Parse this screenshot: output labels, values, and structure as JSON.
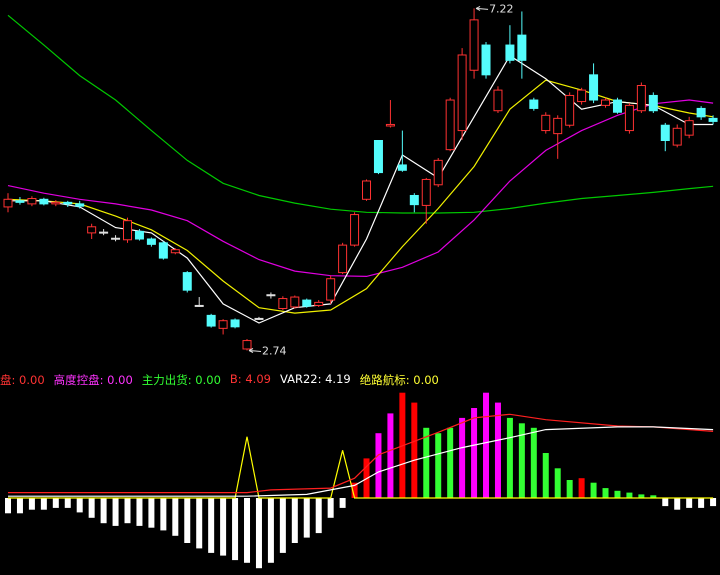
{
  "chart_data": [
    {
      "type": "candlestick",
      "xlim": [
        -0.67,
        59.58
      ],
      "ylim": [
        2.55,
        7.33
      ],
      "up_color": "#ff3232",
      "down_color": "#54fcfc",
      "flat_color": "#e0e0e0",
      "open": [
        4.62,
        4.7,
        4.66,
        4.72,
        4.66,
        4.68,
        4.66,
        4.28,
        4.29,
        4.21,
        4.19,
        4.3,
        4.2,
        4.15,
        4.02,
        3.76,
        3.33,
        3.2,
        3.03,
        3.14,
        2.76,
        3.16,
        3.47,
        3.29,
        3.31,
        3.4,
        3.33,
        3.4,
        3.76,
        4.12,
        4.72,
        5.49,
        5.68,
        5.17,
        4.77,
        4.64,
        4.91,
        5.37,
        5.62,
        6.41,
        6.74,
        5.88,
        6.74,
        6.87,
        6.02,
        5.62,
        5.58,
        5.69,
        6.0,
        6.35,
        5.95,
        6.02,
        5.62,
        5.88,
        6.08,
        5.69,
        5.43,
        5.56,
        5.91,
        5.78
      ],
      "close": [
        4.72,
        4.68,
        4.73,
        4.66,
        4.68,
        4.66,
        4.63,
        4.36,
        4.29,
        4.21,
        4.44,
        4.2,
        4.13,
        3.95,
        4.06,
        3.53,
        3.33,
        3.06,
        3.13,
        3.05,
        2.87,
        3.16,
        3.47,
        3.42,
        3.44,
        3.32,
        3.37,
        3.68,
        4.12,
        4.52,
        4.96,
        5.07,
        5.7,
        5.1,
        4.65,
        4.98,
        5.23,
        6.02,
        6.61,
        7.07,
        6.35,
        6.15,
        6.54,
        6.54,
        5.91,
        5.82,
        5.78,
        6.08,
        6.15,
        6.02,
        6.02,
        5.86,
        5.95,
        6.21,
        5.88,
        5.49,
        5.65,
        5.75,
        5.8,
        5.74
      ],
      "high": [
        4.8,
        4.75,
        4.76,
        4.74,
        4.71,
        4.7,
        4.7,
        4.4,
        4.33,
        4.25,
        4.48,
        4.33,
        4.22,
        4.17,
        4.08,
        3.78,
        3.44,
        3.22,
        3.15,
        3.16,
        2.89,
        3.18,
        3.5,
        3.45,
        3.46,
        3.42,
        3.4,
        3.72,
        4.15,
        4.55,
        4.98,
        5.49,
        6.02,
        5.62,
        4.8,
        5.0,
        5.26,
        6.05,
        6.7,
        7.22,
        6.78,
        6.2,
        7.0,
        7.18,
        6.05,
        5.86,
        5.82,
        6.12,
        6.18,
        6.5,
        6.05,
        6.05,
        5.98,
        6.25,
        6.12,
        5.72,
        5.7,
        5.8,
        5.94,
        5.82
      ],
      "low": [
        4.55,
        4.65,
        4.63,
        4.64,
        4.63,
        4.62,
        4.6,
        4.2,
        4.25,
        4.17,
        4.15,
        4.18,
        4.1,
        3.93,
        4.0,
        3.5,
        3.31,
        3.04,
        2.95,
        3.03,
        2.74,
        3.14,
        3.42,
        3.27,
        3.29,
        3.3,
        3.31,
        3.35,
        3.74,
        4.1,
        4.7,
        5.05,
        5.66,
        5.08,
        4.55,
        4.4,
        4.88,
        5.35,
        5.5,
        6.3,
        6.3,
        5.85,
        6.5,
        6.3,
        5.88,
        5.58,
        5.25,
        5.66,
        5.96,
        5.98,
        5.92,
        5.84,
        5.58,
        5.85,
        5.85,
        5.35,
        5.4,
        5.52,
        5.76,
        5.7
      ],
      "series": [
        {
          "color": "#00c800",
          "x": [
            0,
            3,
            6,
            9,
            12,
            15,
            18,
            21,
            24,
            27,
            30,
            33,
            36,
            39,
            42,
            45,
            48,
            51,
            54,
            57,
            59
          ],
          "values": [
            7.13,
            6.74,
            6.34,
            6.02,
            5.62,
            5.23,
            4.93,
            4.77,
            4.67,
            4.59,
            4.55,
            4.54,
            4.54,
            4.55,
            4.6,
            4.67,
            4.73,
            4.77,
            4.81,
            4.86,
            4.89
          ]
        },
        {
          "color": "#e000e0",
          "x": [
            0,
            3,
            6,
            9,
            12,
            15,
            18,
            21,
            24,
            27,
            30,
            33,
            36,
            39,
            42,
            45,
            48,
            51,
            54,
            57,
            59
          ],
          "values": [
            4.9,
            4.8,
            4.72,
            4.66,
            4.58,
            4.44,
            4.17,
            3.93,
            3.78,
            3.72,
            3.71,
            3.83,
            4.03,
            4.45,
            4.96,
            5.36,
            5.62,
            5.82,
            5.97,
            6.02,
            5.98
          ]
        },
        {
          "color": "#f0f000",
          "x": [
            0,
            3,
            6,
            9,
            12,
            15,
            18,
            21,
            24,
            27,
            30,
            33,
            36,
            39,
            42,
            45,
            48,
            51,
            54,
            57,
            59
          ],
          "values": [
            4.72,
            4.7,
            4.66,
            4.5,
            4.32,
            4.05,
            3.65,
            3.3,
            3.23,
            3.27,
            3.55,
            4.1,
            4.6,
            5.15,
            5.9,
            6.28,
            6.15,
            6.0,
            5.95,
            5.85,
            5.8
          ]
        },
        {
          "color": "#ffffff",
          "x": [
            0,
            3,
            6,
            9,
            12,
            15,
            18,
            21,
            24,
            27,
            30,
            33,
            36,
            39,
            42,
            45,
            48,
            51,
            54,
            57,
            59
          ],
          "values": [
            4.7,
            4.7,
            4.62,
            4.35,
            4.28,
            3.95,
            3.35,
            3.1,
            3.3,
            3.35,
            4.2,
            5.3,
            5.0,
            5.8,
            6.6,
            6.3,
            5.9,
            6.0,
            5.95,
            5.7,
            5.7
          ]
        }
      ],
      "annotations": [
        {
          "label": "7.22",
          "value": 7.22,
          "x": 39
        },
        {
          "label": "2.74",
          "value": 2.74,
          "x": 20
        }
      ]
    },
    {
      "type": "indicator",
      "xlim": [
        -0.67,
        59.58
      ],
      "ylim": [
        -8,
        12
      ],
      "legend": [
        {
          "text": "盘: 0.00",
          "color": "#ff3333"
        },
        {
          "text": "高度控盘: 0.00",
          "color": "#ff33ff"
        },
        {
          "text": "主力出货: 0.00",
          "color": "#33ff33"
        },
        {
          "text": "B: 4.09",
          "color": "#ff3333"
        },
        {
          "text": "VAR22: 4.19",
          "color": "#ffffff"
        },
        {
          "text": "绝路航标: 0.00",
          "color": "#ffff33"
        }
      ],
      "values": [
        -1.7,
        -1.7,
        -1.3,
        -1.3,
        -1.1,
        -1.1,
        -1.6,
        -2.2,
        -2.8,
        -3.1,
        -2.8,
        -3.1,
        -3.3,
        -3.6,
        -4.2,
        -5.0,
        -5.6,
        -6.1,
        -6.4,
        -6.9,
        -7.2,
        -7.8,
        -7.2,
        -6.1,
        -5.0,
        -4.4,
        -3.9,
        -2.2,
        -1.1,
        1.7,
        4.4,
        7.2,
        9.4,
        11.7,
        10.6,
        7.8,
        7.2,
        7.8,
        8.9,
        10.0,
        11.7,
        10.6,
        8.9,
        8.3,
        7.8,
        5.0,
        3.3,
        2.0,
        2.2,
        1.7,
        1.1,
        0.8,
        0.6,
        0.4,
        0.3,
        -0.9,
        -1.3,
        -1.1,
        -1.1,
        -0.9
      ],
      "colors": [
        "#ffffff",
        "#ffffff",
        "#ffffff",
        "#ffffff",
        "#ffffff",
        "#ffffff",
        "#ffffff",
        "#ffffff",
        "#ffffff",
        "#ffffff",
        "#ffffff",
        "#ffffff",
        "#ffffff",
        "#ffffff",
        "#ffffff",
        "#ffffff",
        "#ffffff",
        "#ffffff",
        "#ffffff",
        "#ffffff",
        "#ffffff",
        "#ffffff",
        "#ffffff",
        "#ffffff",
        "#ffffff",
        "#ffffff",
        "#ffffff",
        "#ffffff",
        "#ffffff",
        "#ff0000",
        "#ff0000",
        "#ff00ff",
        "#ff00ff",
        "#ff0000",
        "#ff0000",
        "#33ff33",
        "#33ff33",
        "#33ff33",
        "#ff00ff",
        "#ff00ff",
        "#ff00ff",
        "#ff00ff",
        "#33ff33",
        "#33ff33",
        "#33ff33",
        "#33ff33",
        "#33ff33",
        "#33ff33",
        "#ff0000",
        "#33ff33",
        "#33ff33",
        "#33ff33",
        "#33ff33",
        "#33ff33",
        "#33ff33",
        "#ffffff",
        "#ffffff",
        "#ffffff",
        "#ffffff",
        "#ffffff"
      ],
      "series": [
        {
          "color": "#ffff00",
          "x": [
            0,
            19,
            20,
            21,
            27,
            28,
            29,
            59
          ],
          "values": [
            0,
            0,
            6.8,
            0,
            0,
            5.3,
            0,
            0
          ]
        },
        {
          "color": "#ff2020",
          "x": [
            0,
            10,
            20,
            22,
            27,
            29,
            31,
            36,
            39,
            42,
            45,
            51,
            54,
            59
          ],
          "values": [
            0.6,
            0.6,
            0.6,
            0.9,
            1.1,
            2.2,
            4.8,
            7.3,
            8.9,
            9.3,
            8.7,
            8.0,
            7.9,
            7.4
          ]
        },
        {
          "color": "#ffffff",
          "x": [
            0,
            10,
            20,
            25,
            29,
            31,
            34,
            38,
            42,
            45,
            51,
            54,
            59
          ],
          "values": [
            0.2,
            0.2,
            0.2,
            0.4,
            1.4,
            2.9,
            4.2,
            5.6,
            6.7,
            7.6,
            7.9,
            7.9,
            7.6
          ]
        }
      ]
    }
  ]
}
